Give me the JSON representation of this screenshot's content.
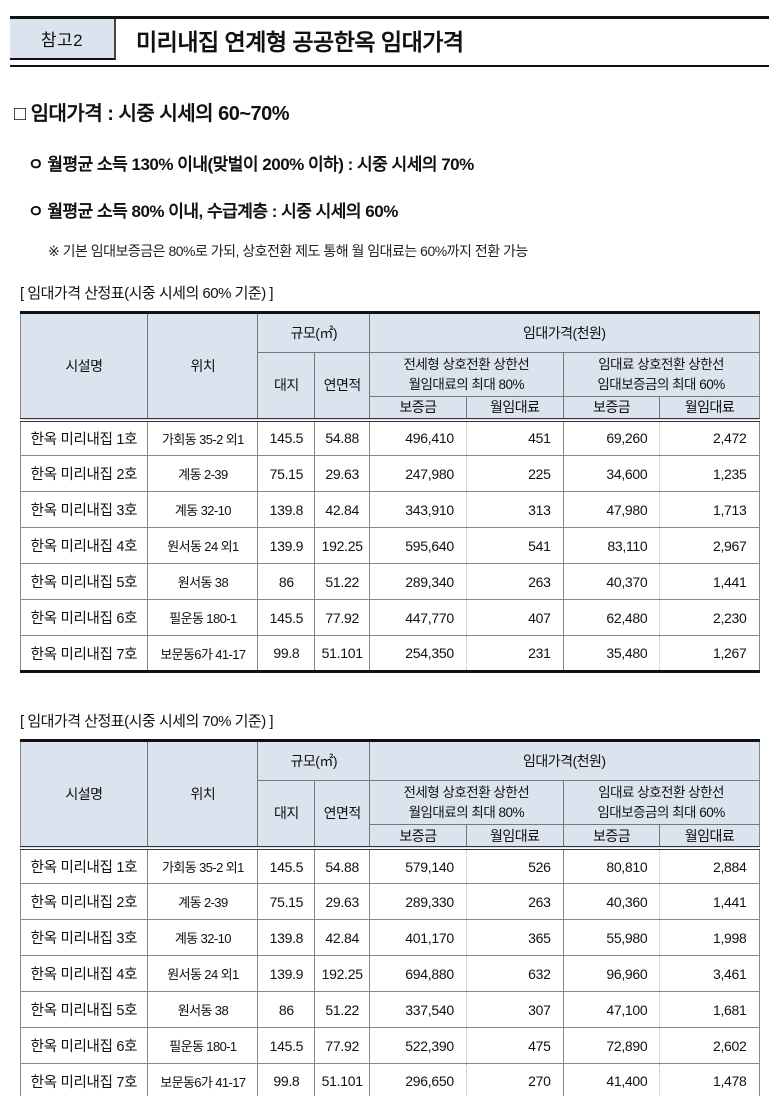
{
  "doc_header": {
    "badge": "참고2",
    "title": "미리내집 연계형 공공한옥 임대가격"
  },
  "intro": {
    "heading": "□ 임대가격 : 시중 시세의 60~70%",
    "bullet_1": "ㅇ 월평균 소득 130% 이내(맞벌이 200% 이하) : 시중 시세의 70%",
    "bullet_2": "ㅇ 월평균 소득 80% 이내, 수급계층 : 시중 시세의 60%",
    "note": "※ 기본 임대보증금은 80%로 가되, 상호전환 제도 통해 월 임대료는 60%까지 전환 가능"
  },
  "table_headers": {
    "facility": "시설명",
    "location": "위치",
    "size_group": "규모(㎡)",
    "land": "대지",
    "floor_area": "연면적",
    "price_group": "임대가격(천원)",
    "jeonse_group_line1": "전세형 상호전환 상한선",
    "jeonse_group_line2": "월임대료의 최대 80%",
    "rent_group_line1": "임대료 상호전환 상한선",
    "rent_group_line2": "임대보증금의 최대 60%",
    "deposit": "보증금",
    "monthly_rent": "월임대료"
  },
  "tables": [
    {
      "caption": "[ 임대가격 산정표(시중 시세의 60% 기준) ]",
      "rows": [
        [
          "한옥 미리내집 1호",
          "가회동 35-2 외1",
          "145.5",
          "54.88",
          "496,410",
          "451",
          "69,260",
          "2,472"
        ],
        [
          "한옥 미리내집 2호",
          "계동 2-39",
          "75.15",
          "29.63",
          "247,980",
          "225",
          "34,600",
          "1,235"
        ],
        [
          "한옥 미리내집 3호",
          "계동 32-10",
          "139.8",
          "42.84",
          "343,910",
          "313",
          "47,980",
          "1,713"
        ],
        [
          "한옥 미리내집 4호",
          "원서동 24 외1",
          "139.9",
          "192.25",
          "595,640",
          "541",
          "83,110",
          "2,967"
        ],
        [
          "한옥 미리내집 5호",
          "원서동 38",
          "86",
          "51.22",
          "289,340",
          "263",
          "40,370",
          "1,441"
        ],
        [
          "한옥 미리내집 6호",
          "필운동 180-1",
          "145.5",
          "77.92",
          "447,770",
          "407",
          "62,480",
          "2,230"
        ],
        [
          "한옥 미리내집 7호",
          "보문동6가 41-17",
          "99.8",
          "51.101",
          "254,350",
          "231",
          "35,480",
          "1,267"
        ]
      ]
    },
    {
      "caption": "[ 임대가격 산정표(시중 시세의 70% 기준) ]",
      "rows": [
        [
          "한옥 미리내집 1호",
          "가회동 35-2 외1",
          "145.5",
          "54.88",
          "579,140",
          "526",
          "80,810",
          "2,884"
        ],
        [
          "한옥 미리내집 2호",
          "계동 2-39",
          "75.15",
          "29.63",
          "289,330",
          "263",
          "40,360",
          "1,441"
        ],
        [
          "한옥 미리내집 3호",
          "계동 32-10",
          "139.8",
          "42.84",
          "401,170",
          "365",
          "55,980",
          "1,998"
        ],
        [
          "한옥 미리내집 4호",
          "원서동 24 외1",
          "139.9",
          "192.25",
          "694,880",
          "632",
          "96,960",
          "3,461"
        ],
        [
          "한옥 미리내집 5호",
          "원서동 38",
          "86",
          "51.22",
          "337,540",
          "307",
          "47,100",
          "1,681"
        ],
        [
          "한옥 미리내집 6호",
          "필운동 180-1",
          "145.5",
          "77.92",
          "522,390",
          "475",
          "72,890",
          "2,602"
        ],
        [
          "한옥 미리내집 7호",
          "보문동6가 41-17",
          "99.8",
          "51.101",
          "296,650",
          "270",
          "41,400",
          "1,478"
        ]
      ]
    }
  ],
  "colors": {
    "header_bg": "#dbe3ef",
    "badge_bg": "#dbe3ef",
    "rule_dark": "#111111",
    "line_gray": "#888888"
  }
}
